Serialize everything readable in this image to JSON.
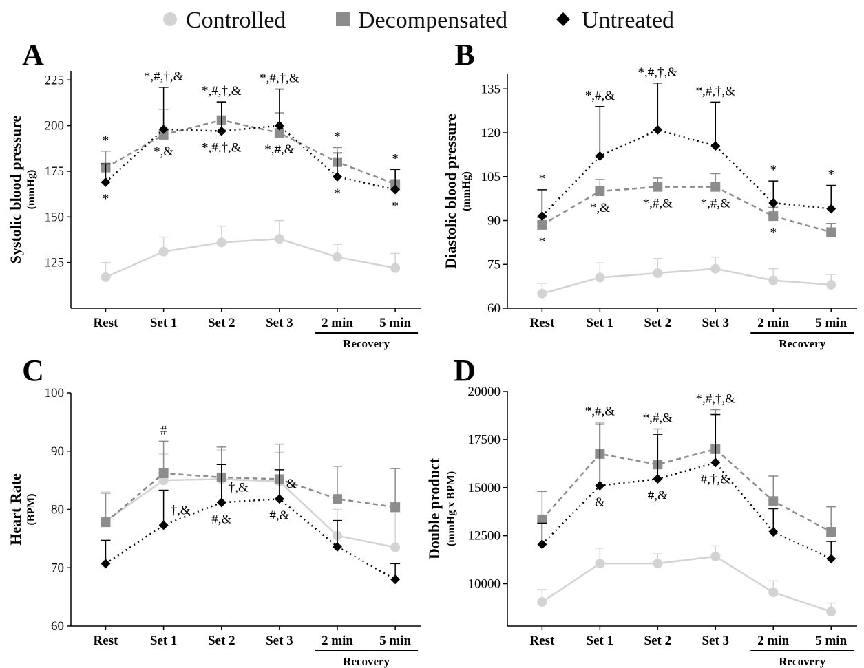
{
  "legend": [
    {
      "label": "Controlled",
      "color": "#d3d3d3",
      "marker": "circle",
      "dash": "solid"
    },
    {
      "label": "Decompensated",
      "color": "#8c8c8c",
      "marker": "square",
      "dash": "dashed"
    },
    {
      "label": "Untreated",
      "color": "#000000",
      "marker": "diamond",
      "dash": "dotted"
    }
  ],
  "chart_data": [
    {
      "panel": "A",
      "type": "line",
      "ylabel": "Systolic blood pressure",
      "yunit": "(mmHg)",
      "categories": [
        "Rest",
        "Set 1",
        "Set 2",
        "Set 3",
        "2 min",
        "5 min"
      ],
      "recovery_label": "Recovery",
      "ylim": [
        100,
        230
      ],
      "yticks": [
        125,
        150,
        175,
        200,
        225
      ],
      "series": [
        {
          "name": "Controlled",
          "values": [
            117,
            131,
            136,
            138,
            128,
            122
          ],
          "errors": [
            8,
            8,
            9,
            10,
            7,
            8
          ]
        },
        {
          "name": "Decompensated",
          "values": [
            177,
            195,
            203,
            196,
            180,
            168
          ],
          "errors": [
            9,
            14,
            10,
            11,
            8,
            8
          ]
        },
        {
          "name": "Untreated",
          "values": [
            169,
            198,
            197,
            200,
            172,
            165
          ],
          "errors": [
            10,
            23,
            16,
            20,
            13,
            11
          ]
        }
      ],
      "annotations_above": [
        "*",
        "*,#,†,&",
        "*,#,†,&",
        "*,#,†,&",
        "*",
        "*"
      ],
      "annotations_below": [
        "*",
        "*,&",
        "*,#,†,&",
        "*,#,&",
        "*",
        "*"
      ]
    },
    {
      "panel": "B",
      "type": "line",
      "ylabel": "Diastolic blood pressure",
      "yunit": "(mmHg)",
      "categories": [
        "Rest",
        "Set 1",
        "Set 2",
        "Set 3",
        "2 min",
        "5 min"
      ],
      "recovery_label": "Recovery",
      "ylim": [
        60,
        140
      ],
      "yticks": [
        60,
        75,
        90,
        105,
        120,
        135
      ],
      "series": [
        {
          "name": "Controlled",
          "values": [
            65,
            70.5,
            72,
            73.5,
            69.5,
            68
          ],
          "errors": [
            3.5,
            5,
            5,
            4,
            4,
            3.5
          ]
        },
        {
          "name": "Decompensated",
          "values": [
            88.5,
            100,
            101.5,
            101.5,
            91.5,
            86
          ],
          "errors": [
            2.5,
            4,
            3,
            4.5,
            3,
            3
          ]
        },
        {
          "name": "Untreated",
          "values": [
            91.5,
            112,
            121,
            115.5,
            96,
            94
          ],
          "errors": [
            9,
            17,
            16,
            15,
            7.5,
            8
          ]
        }
      ],
      "annotations_above": [
        "*",
        "*,#,&",
        "*,#,†,&",
        "*,#,†,&",
        "*",
        "*"
      ],
      "annotations_below": [
        "*",
        "*,&",
        "*,#,&",
        "*,#,&",
        "*",
        ""
      ]
    },
    {
      "panel": "C",
      "type": "line",
      "ylabel": "Heart Rate",
      "yunit": "(BPM)",
      "categories": [
        "Rest",
        "Set 1",
        "Set 2",
        "Set 3",
        "2 min",
        "5 min"
      ],
      "recovery_label": "Recovery",
      "ylim": [
        60,
        100
      ],
      "yticks": [
        60,
        70,
        80,
        90,
        100
      ],
      "series": [
        {
          "name": "Controlled",
          "values": [
            78,
            85,
            85.2,
            84.8,
            75.5,
            73.5
          ],
          "errors": [
            5,
            4.5,
            5,
            5,
            4.5,
            6
          ]
        },
        {
          "name": "Decompensated",
          "values": [
            77.8,
            86.2,
            85.5,
            85.2,
            81.8,
            80.4
          ],
          "errors": [
            5,
            5.5,
            5.2,
            6,
            5.6,
            6.6
          ]
        },
        {
          "name": "Untreated",
          "values": [
            70.7,
            77.3,
            81.2,
            81.8,
            73.6,
            68
          ],
          "errors": [
            4,
            6,
            6.5,
            5,
            4.5,
            2.7
          ]
        }
      ],
      "annotations": [
        {
          "index": 1,
          "text": "#",
          "pos": "above"
        },
        {
          "index": 1,
          "text": "†,&",
          "pos": "right"
        },
        {
          "index": 2,
          "text": "†,&",
          "pos": "right"
        },
        {
          "index": 2,
          "text": "#,&",
          "pos": "below"
        },
        {
          "index": 3,
          "text": "&",
          "pos": "right"
        },
        {
          "index": 3,
          "text": "#,&",
          "pos": "below"
        }
      ]
    },
    {
      "panel": "D",
      "type": "line",
      "ylabel": "Double product",
      "yunit": "(mmHg x BPM)",
      "categories": [
        "Rest",
        "Set 1",
        "Set 2",
        "Set 3",
        "2 min",
        "5 min"
      ],
      "recovery_label": "Recovery",
      "ylim": [
        7800,
        20000
      ],
      "yticks": [
        10000,
        12500,
        15000,
        17500,
        20000
      ],
      "series": [
        {
          "name": "Controlled",
          "values": [
            9050,
            11050,
            11050,
            11420,
            9550,
            8550
          ],
          "errors": [
            650,
            800,
            500,
            550,
            600,
            450
          ]
        },
        {
          "name": "Decompensated",
          "values": [
            13350,
            16750,
            16200,
            17000,
            14300,
            12700
          ],
          "errors": [
            1450,
            1650,
            1850,
            2050,
            1300,
            1300
          ]
        },
        {
          "name": "Untreated",
          "values": [
            12050,
            15100,
            15450,
            16300,
            12700,
            11300
          ],
          "errors": [
            1100,
            3200,
            2300,
            2500,
            1200,
            900
          ]
        }
      ],
      "annotations": [
        {
          "index": 1,
          "text": "*,#,&",
          "pos": "above"
        },
        {
          "index": 1,
          "text": "&",
          "pos": "below"
        },
        {
          "index": 2,
          "text": "*,#,&",
          "pos": "above"
        },
        {
          "index": 2,
          "text": "#,&",
          "pos": "below"
        },
        {
          "index": 3,
          "text": "*,#,†,&",
          "pos": "above"
        },
        {
          "index": 3,
          "text": "#,†,&",
          "pos": "below"
        }
      ]
    }
  ]
}
